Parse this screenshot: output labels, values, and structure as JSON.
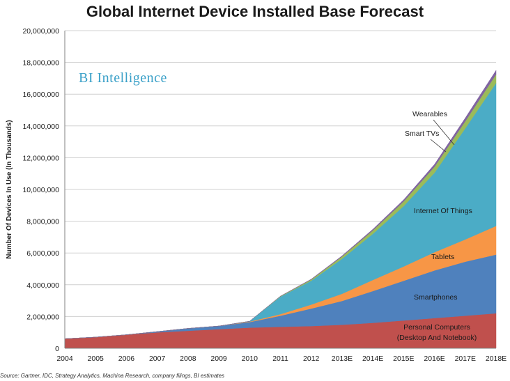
{
  "chart_data": {
    "type": "area",
    "stacked": true,
    "title": "Global Internet Device Installed Base Forecast",
    "ylabel": "Number Of Devices In Use (In Thousands)",
    "brand": "BI Intelligence",
    "source": "Source: Gartner, IDC, Strategy Analytics, Machina Research, company filings, BI estimates",
    "ylim": [
      0,
      20000000
    ],
    "yticks": [
      0,
      2000000,
      4000000,
      6000000,
      8000000,
      10000000,
      12000000,
      14000000,
      16000000,
      18000000,
      20000000
    ],
    "ytick_labels": [
      "0",
      "2,000,000",
      "4,000,000",
      "6,000,000",
      "8,000,000",
      "10,000,000",
      "12,000,000",
      "14,000,000",
      "16,000,000",
      "18,000,000",
      "20,000,000"
    ],
    "grid": true,
    "categories": [
      "2004",
      "2005",
      "2006",
      "2007",
      "2008",
      "2009",
      "2010",
      "2011",
      "2012",
      "2013E",
      "2014E",
      "2015E",
      "2016E",
      "2017E",
      "2018E"
    ],
    "series": [
      {
        "name": "Personal Computers (Desktop And Notebook)",
        "color": "#c0504d",
        "values": [
          600000,
          700000,
          850000,
          1000000,
          1100000,
          1200000,
          1300000,
          1350000,
          1400000,
          1480000,
          1600000,
          1750000,
          1900000,
          2050000,
          2200000
        ]
      },
      {
        "name": "Smartphones",
        "color": "#4f81bd",
        "values": [
          0,
          0,
          0,
          50000,
          150000,
          200000,
          350000,
          700000,
          1100000,
          1500000,
          2000000,
          2500000,
          3000000,
          3400000,
          3700000
        ]
      },
      {
        "name": "Tablets",
        "color": "#f79646",
        "values": [
          0,
          0,
          0,
          0,
          0,
          0,
          30000,
          100000,
          250000,
          450000,
          700000,
          900000,
          1150000,
          1400000,
          1800000
        ]
      },
      {
        "name": "Internet Of Things",
        "color": "#4bacc6",
        "values": [
          0,
          0,
          0,
          0,
          0,
          0,
          20000,
          1100000,
          1500000,
          2200000,
          2900000,
          3800000,
          5000000,
          7000000,
          9000000
        ]
      },
      {
        "name": "Smart TVs",
        "color": "#9bbb59",
        "values": [
          0,
          0,
          0,
          0,
          0,
          0,
          0,
          30000,
          80000,
          150000,
          220000,
          300000,
          380000,
          450000,
          550000
        ]
      },
      {
        "name": "Wearables",
        "color": "#8064a2",
        "values": [
          0,
          0,
          0,
          0,
          0,
          0,
          0,
          0,
          20000,
          40000,
          70000,
          100000,
          150000,
          200000,
          250000
        ]
      }
    ],
    "labels": {
      "wearables": "Wearables",
      "smart_tvs": "Smart TVs",
      "iot": "Internet Of Things",
      "tablets": "Tablets",
      "smartphones": "Smartphones",
      "pc_line1": "Personal Computers",
      "pc_line2": "(Desktop And Notebook)"
    }
  }
}
